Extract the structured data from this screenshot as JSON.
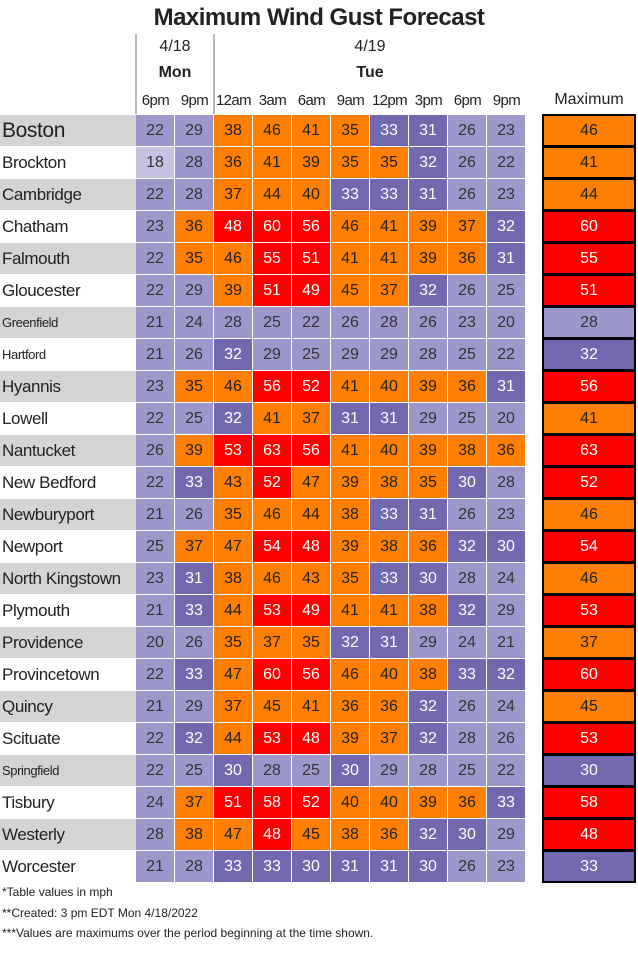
{
  "title": "Maximum Wind Gust Forecast",
  "dates": [
    {
      "date": "4/18",
      "day": "Mon",
      "times": [
        "6pm",
        "9pm"
      ]
    },
    {
      "date": "4/19",
      "day": "Tue",
      "times": [
        "12am",
        "3am",
        "6am",
        "9am",
        "12pm",
        "3pm",
        "6pm",
        "9pm"
      ]
    }
  ],
  "max_header": "Maximum",
  "color_scale": [
    {
      "min": 0,
      "color": "#c6c3e2",
      "text": "#333333"
    },
    {
      "min": 20,
      "color": "#9d98cb",
      "text": "#333333"
    },
    {
      "min": 30,
      "color": "#7268b0",
      "text": "#ffffff"
    },
    {
      "min": 34,
      "color": "#ff7f00",
      "text": "#222222"
    },
    {
      "min": 48,
      "color": "#ff0000",
      "text": "#ffffff"
    }
  ],
  "rows": [
    {
      "name": "Boston",
      "values": [
        22,
        29,
        38,
        46,
        41,
        35,
        33,
        31,
        26,
        23
      ],
      "max": 46
    },
    {
      "name": "Brockton",
      "values": [
        18,
        28,
        36,
        41,
        39,
        35,
        35,
        32,
        26,
        22
      ],
      "max": 41
    },
    {
      "name": "Cambridge",
      "values": [
        22,
        28,
        37,
        44,
        40,
        33,
        33,
        31,
        26,
        23
      ],
      "max": 44
    },
    {
      "name": "Chatham",
      "values": [
        23,
        36,
        48,
        60,
        56,
        46,
        41,
        39,
        37,
        32
      ],
      "max": 60
    },
    {
      "name": "Falmouth",
      "values": [
        22,
        35,
        46,
        55,
        51,
        41,
        41,
        39,
        36,
        31
      ],
      "max": 55
    },
    {
      "name": "Gloucester",
      "values": [
        22,
        29,
        39,
        51,
        49,
        45,
        37,
        32,
        26,
        25
      ],
      "max": 51
    },
    {
      "name": "Greenfield",
      "values": [
        21,
        24,
        28,
        25,
        22,
        26,
        28,
        26,
        23,
        20
      ],
      "max": 28
    },
    {
      "name": "Hartford",
      "values": [
        21,
        26,
        32,
        29,
        25,
        29,
        29,
        28,
        25,
        22
      ],
      "max": 32
    },
    {
      "name": "Hyannis",
      "values": [
        23,
        35,
        46,
        56,
        52,
        41,
        40,
        39,
        36,
        31
      ],
      "max": 56
    },
    {
      "name": "Lowell",
      "values": [
        22,
        25,
        32,
        41,
        37,
        31,
        31,
        29,
        25,
        20
      ],
      "max": 41
    },
    {
      "name": "Nantucket",
      "values": [
        26,
        39,
        53,
        63,
        56,
        41,
        40,
        39,
        38,
        36
      ],
      "max": 63
    },
    {
      "name": "New Bedford",
      "values": [
        22,
        33,
        43,
        52,
        47,
        39,
        38,
        35,
        30,
        28
      ],
      "max": 52
    },
    {
      "name": "Newburyport",
      "values": [
        21,
        26,
        35,
        46,
        44,
        38,
        33,
        31,
        26,
        23
      ],
      "max": 46
    },
    {
      "name": "Newport",
      "values": [
        25,
        37,
        47,
        54,
        48,
        39,
        38,
        36,
        32,
        30
      ],
      "max": 54
    },
    {
      "name": "North Kingstown",
      "values": [
        23,
        31,
        38,
        46,
        43,
        35,
        33,
        30,
        28,
        24
      ],
      "max": 46
    },
    {
      "name": "Plymouth",
      "values": [
        21,
        33,
        44,
        53,
        49,
        41,
        41,
        38,
        32,
        29
      ],
      "max": 53
    },
    {
      "name": "Providence",
      "values": [
        20,
        26,
        35,
        37,
        35,
        32,
        31,
        29,
        24,
        21
      ],
      "max": 37
    },
    {
      "name": "Provincetown",
      "values": [
        22,
        33,
        47,
        60,
        56,
        46,
        40,
        38,
        33,
        32
      ],
      "max": 60
    },
    {
      "name": "Quincy",
      "values": [
        21,
        29,
        37,
        45,
        41,
        36,
        36,
        32,
        26,
        24
      ],
      "max": 45
    },
    {
      "name": "Scituate",
      "values": [
        22,
        32,
        44,
        53,
        48,
        39,
        37,
        32,
        28,
        26
      ],
      "max": 53
    },
    {
      "name": "Springfield",
      "values": [
        22,
        25,
        30,
        28,
        25,
        30,
        29,
        28,
        25,
        22
      ],
      "max": 30
    },
    {
      "name": "Tisbury",
      "values": [
        24,
        37,
        51,
        58,
        52,
        40,
        40,
        39,
        36,
        33
      ],
      "max": 58
    },
    {
      "name": "Westerly",
      "values": [
        28,
        38,
        47,
        48,
        45,
        38,
        36,
        32,
        30,
        29
      ],
      "max": 48
    },
    {
      "name": "Worcester",
      "values": [
        21,
        28,
        33,
        33,
        30,
        31,
        31,
        30,
        26,
        23
      ],
      "max": 33
    }
  ],
  "notes": [
    "*Table values in mph",
    "**Created: 3 pm EDT Mon 4/18/2022",
    "***Values are maximums over the period beginning at the time shown."
  ]
}
